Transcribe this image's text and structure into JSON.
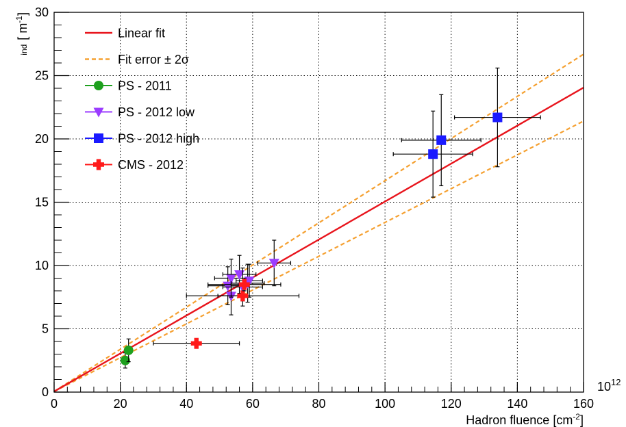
{
  "chart_data": {
    "type": "scatter",
    "title": "",
    "xlabel": "Hadron fluence [cm",
    "xlabel_sup": "-2",
    "xlabel_close": "]",
    "x_multiplier": "10",
    "x_multiplier_exp": "12",
    "ylabel_sub": "ind",
    "ylabel_main": "[ m",
    "ylabel_sup": "-1",
    "ylabel_close": "]",
    "xlim": [
      0,
      160
    ],
    "ylim": [
      0,
      30
    ],
    "x_ticks": [
      0,
      20,
      40,
      60,
      80,
      100,
      120,
      140,
      160
    ],
    "x_tick_labels": [
      "0",
      "20",
      "40",
      "60",
      "80",
      "100",
      "120",
      "140",
      "160"
    ],
    "y_ticks": [
      0,
      5,
      10,
      15,
      20,
      25,
      30
    ],
    "y_tick_labels": [
      "0",
      "5",
      "10",
      "15",
      "20",
      "25",
      "30"
    ],
    "grid": true,
    "legend_position": "top-left",
    "colors": {
      "fit": "#e8141c",
      "fit_error": "#f5a030",
      "ps2011": "#1ea01e",
      "ps2012low": "#9b3cff",
      "ps2012high": "#1a1aff",
      "cms2012": "#ff1a1a"
    },
    "fit": {
      "name": "Linear fit",
      "slope": 0.15,
      "intercept": 0.05
    },
    "fit_error": {
      "name": "Fit error ± 2σ",
      "upper_slope": 0.1665,
      "lower_slope": 0.1335
    },
    "series": [
      {
        "name": "PS - 2011",
        "marker": "circle",
        "points": [
          {
            "x": 21.5,
            "y": 2.5,
            "xerr": 1.0,
            "yerr": 0.6
          },
          {
            "x": 22.5,
            "y": 3.3,
            "xerr": 1.0,
            "yerr": 0.9
          }
        ]
      },
      {
        "name": "PS - 2012 low",
        "marker": "triangle-down",
        "points": [
          {
            "x": 52.5,
            "y": 8.4,
            "xerr": 6.0,
            "yerr": 1.5
          },
          {
            "x": 53.5,
            "y": 7.6,
            "xerr": 4.0,
            "yerr": 1.5
          },
          {
            "x": 53.5,
            "y": 9.0,
            "xerr": 5.0,
            "yerr": 1.5
          },
          {
            "x": 56.0,
            "y": 9.3,
            "xerr": 5.0,
            "yerr": 1.5
          },
          {
            "x": 57.0,
            "y": 8.3,
            "xerr": 6.0,
            "yerr": 1.5
          },
          {
            "x": 58.5,
            "y": 8.6,
            "xerr": 5.0,
            "yerr": 1.5
          },
          {
            "x": 59.0,
            "y": 8.8,
            "xerr": 4.0,
            "yerr": 1.3
          },
          {
            "x": 66.5,
            "y": 10.2,
            "xerr": 5.0,
            "yerr": 1.8
          }
        ]
      },
      {
        "name": "PS - 2012 high",
        "marker": "square",
        "points": [
          {
            "x": 114.5,
            "y": 18.8,
            "xerr": 12.0,
            "yerr": 3.4
          },
          {
            "x": 117.0,
            "y": 19.9,
            "xerr": 12.0,
            "yerr": 3.6
          },
          {
            "x": 134.0,
            "y": 21.7,
            "xerr": 13.0,
            "yerr": 3.9
          }
        ]
      },
      {
        "name": "CMS - 2012",
        "marker": "cross",
        "points": [
          {
            "x": 43.0,
            "y": 3.85,
            "xerr": 13.0,
            "yerr": 0.2
          },
          {
            "x": 57.0,
            "y": 7.6,
            "xerr": 17.0,
            "yerr": 0.4
          },
          {
            "x": 57.5,
            "y": 8.5,
            "xerr": 11.0,
            "yerr": 0.5
          }
        ]
      }
    ]
  }
}
